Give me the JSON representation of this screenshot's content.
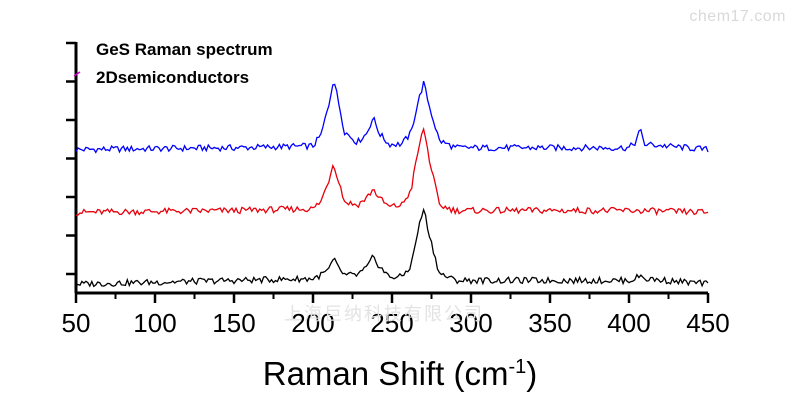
{
  "watermarks": {
    "top_right": "chem17.com",
    "center": "上海巨纳科技有限公司"
  },
  "chart_data": {
    "type": "line",
    "title": "",
    "legend": [
      "GeS Raman spectrum",
      "2Dsemiconductors"
    ],
    "legend_placement": "top-left",
    "xlabel": "Raman Shift (cm",
    "xlabel_superscript": "-1",
    "xlabel_suffix": ")",
    "ylabel": "",
    "xlim": [
      50,
      450
    ],
    "x_ticks": [
      "50",
      "100",
      "150",
      "200",
      "250",
      "300",
      "350",
      "400",
      "450"
    ],
    "y_tick_labels_shown": false,
    "grid": false,
    "peaks_cm1": [
      213,
      238,
      270
    ],
    "series": [
      {
        "color": "#0000ff",
        "baseline": 0.75,
        "x": [
          50,
          150,
          200,
          205,
          210,
          213,
          216,
          220,
          228,
          234,
          238,
          242,
          248,
          256,
          262,
          266,
          270,
          274,
          280,
          290,
          320,
          400,
          404,
          407,
          410,
          450
        ],
        "y": [
          0.75,
          0.76,
          0.77,
          0.83,
          1.0,
          1.15,
          1.02,
          0.85,
          0.79,
          0.84,
          0.93,
          0.84,
          0.78,
          0.78,
          0.84,
          1.0,
          1.12,
          0.98,
          0.8,
          0.76,
          0.76,
          0.76,
          0.79,
          0.86,
          0.78,
          0.75
        ]
      },
      {
        "color": "#e8000b",
        "baseline": 0.4,
        "x": [
          50,
          150,
          200,
          205,
          210,
          213,
          216,
          220,
          228,
          234,
          238,
          242,
          248,
          256,
          262,
          266,
          270,
          274,
          280,
          290,
          320,
          400,
          450
        ],
        "y": [
          0.4,
          0.41,
          0.42,
          0.46,
          0.58,
          0.68,
          0.58,
          0.46,
          0.44,
          0.48,
          0.53,
          0.48,
          0.43,
          0.44,
          0.52,
          0.72,
          0.87,
          0.68,
          0.44,
          0.41,
          0.41,
          0.41,
          0.4
        ]
      },
      {
        "color": "#000000",
        "baseline": 0.0,
        "x": [
          50,
          150,
          200,
          205,
          210,
          213,
          216,
          220,
          228,
          234,
          238,
          242,
          248,
          256,
          262,
          266,
          270,
          274,
          280,
          290,
          320,
          400,
          404,
          407,
          410,
          450
        ],
        "y": [
          0.0,
          0.02,
          0.03,
          0.05,
          0.08,
          0.14,
          0.09,
          0.05,
          0.05,
          0.09,
          0.15,
          0.1,
          0.04,
          0.04,
          0.1,
          0.28,
          0.42,
          0.26,
          0.06,
          0.02,
          0.02,
          0.02,
          0.03,
          0.05,
          0.03,
          0.0
        ]
      }
    ]
  }
}
